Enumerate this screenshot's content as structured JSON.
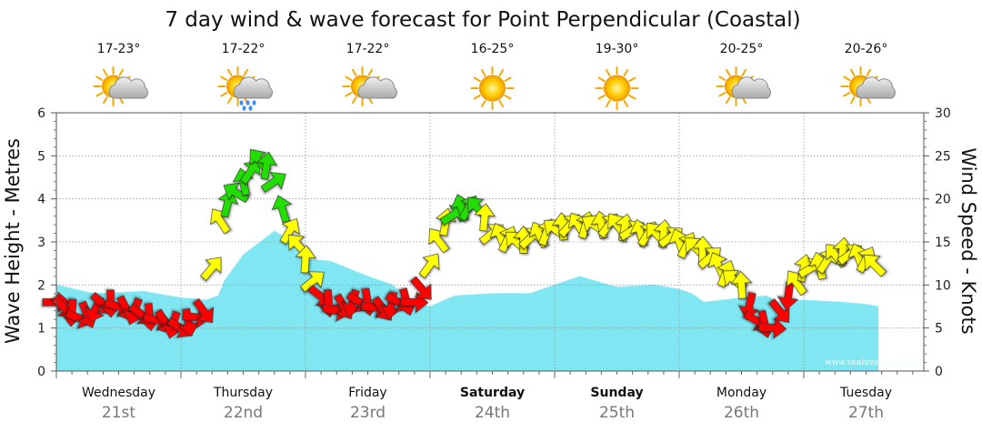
{
  "chart_data": {
    "type": "area",
    "title": "7 day wind & wave forecast for Point Perpendicular (Coastal)",
    "ylabel_left": "Wave Height - Metres",
    "ylabel_right": "Wind Speed - Knots",
    "ylim_left": [
      0,
      6
    ],
    "ylim_right": [
      0,
      30
    ],
    "yticks_left": [
      "0",
      "1",
      "2",
      "3",
      "4",
      "5",
      "6"
    ],
    "yticks_right": [
      "0",
      "5",
      "10",
      "15",
      "20",
      "25",
      "30"
    ],
    "watermark": "www.seabreeze.com.au",
    "colors": {
      "wave_fill": "#7fe6f2",
      "wind_low": "#ff0000",
      "wind_mid": "#ffff00",
      "wind_high": "#22dd00",
      "grid": "#999999"
    },
    "days": [
      {
        "name": "Wednesday",
        "date": "21st",
        "temp": "17-23°",
        "weather_icon": "partly-cloudy-icon",
        "bold": false
      },
      {
        "name": "Thursday",
        "date": "22nd",
        "temp": "17-22°",
        "weather_icon": "showers-icon",
        "bold": false
      },
      {
        "name": "Friday",
        "date": "23rd",
        "temp": "17-22°",
        "weather_icon": "partly-cloudy-icon",
        "bold": false
      },
      {
        "name": "Saturday",
        "date": "24th",
        "temp": "16-25°",
        "weather_icon": "sunny-icon",
        "bold": true
      },
      {
        "name": "Sunday",
        "date": "25th",
        "temp": "19-30°",
        "weather_icon": "sunny-icon",
        "bold": true
      },
      {
        "name": "Monday",
        "date": "26th",
        "temp": "20-25°",
        "weather_icon": "partly-cloudy-icon",
        "bold": false
      },
      {
        "name": "Tuesday",
        "date": "27th",
        "temp": "20-26°",
        "weather_icon": "partly-cloudy-icon",
        "bold": false
      }
    ],
    "x_unit": "days since start of chart",
    "wave_height": {
      "x": [
        0,
        0.3,
        0.7,
        1.0,
        1.2,
        1.3,
        1.35,
        1.5,
        1.75,
        1.9,
        2.0,
        2.2,
        2.5,
        2.7,
        2.85,
        3.0,
        3.2,
        3.5,
        3.8,
        3.9,
        4.0,
        4.2,
        4.5,
        4.8,
        5.0,
        5.1,
        5.2,
        5.5,
        5.7,
        5.8,
        6.0,
        6.3,
        6.5,
        6.6
      ],
      "y": [
        2.0,
        1.8,
        1.85,
        1.7,
        1.65,
        1.75,
        2.1,
        2.7,
        3.25,
        3.0,
        2.6,
        2.55,
        2.2,
        2.0,
        1.6,
        1.5,
        1.75,
        1.8,
        1.8,
        1.9,
        2.0,
        2.2,
        1.95,
        2.0,
        1.9,
        1.8,
        1.6,
        1.7,
        1.75,
        1.6,
        1.65,
        1.6,
        1.55,
        1.5
      ]
    },
    "wind_speed": {
      "x": [
        0,
        0.2,
        0.4,
        0.6,
        0.8,
        1.0,
        1.2,
        1.3,
        1.35,
        1.5,
        1.65,
        1.75,
        1.85,
        2.0,
        2.1,
        2.25,
        2.4,
        2.5,
        2.6,
        2.75,
        2.9,
        2.95,
        3.1,
        3.25,
        3.4,
        3.5,
        3.7,
        3.9,
        4.1,
        4.3,
        4.5,
        4.7,
        4.9,
        5.0,
        5.2,
        5.4,
        5.5,
        5.6,
        5.75,
        5.85,
        6.0,
        6.1,
        6.3,
        6.5,
        6.6
      ],
      "y": [
        8,
        6,
        8,
        7,
        6,
        5,
        7,
        17,
        19,
        22,
        25,
        22,
        17,
        13,
        9,
        7,
        8,
        8,
        7,
        8,
        8,
        10,
        17,
        19,
        19,
        16,
        15,
        16,
        17,
        17,
        17,
        16,
        16,
        15,
        14,
        11,
        10,
        6,
        5,
        8,
        12,
        12,
        14,
        13,
        12
      ]
    }
  }
}
